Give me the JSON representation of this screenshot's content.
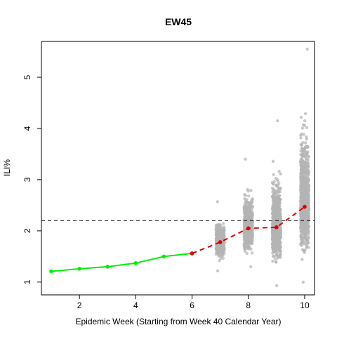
{
  "chart_data": {
    "type": "scatter",
    "title": "EW45",
    "xlabel": "Epidemic Week (Starting from Week 40 Calendar Year)",
    "ylabel": "ILI%",
    "xlim": [
      0.65,
      10.35
    ],
    "ylim": [
      0.75,
      5.7
    ],
    "x_ticks": [
      "2",
      "4",
      "6",
      "8",
      "10"
    ],
    "y_ticks": [
      "1",
      "2",
      "3",
      "4",
      "5"
    ],
    "grid": false,
    "legend": "none",
    "threshold": {
      "y": 2.2,
      "style": "dashed",
      "color": "#000000"
    },
    "series": [
      {
        "role": "observed",
        "color": "#00ee00",
        "line": "solid",
        "x": [
          1,
          2,
          3,
          4,
          5,
          6
        ],
        "y": [
          1.21,
          1.26,
          1.3,
          1.37,
          1.5,
          1.56
        ]
      },
      {
        "role": "forecast-median",
        "color": "#dd0000",
        "line": "dashed",
        "x": [
          6,
          7,
          8,
          9,
          10
        ],
        "y": [
          1.56,
          1.78,
          2.05,
          2.07,
          2.47
        ]
      }
    ],
    "simulations": {
      "color": "#b3b3b3",
      "x": [
        7,
        8,
        9,
        10
      ],
      "median": [
        1.78,
        2.05,
        2.07,
        2.47
      ],
      "min": [
        1.22,
        1.3,
        0.93,
        1.0
      ],
      "max": [
        2.57,
        3.4,
        4.15,
        5.55
      ],
      "points_per_week": [
        450,
        650,
        750,
        900
      ]
    }
  }
}
